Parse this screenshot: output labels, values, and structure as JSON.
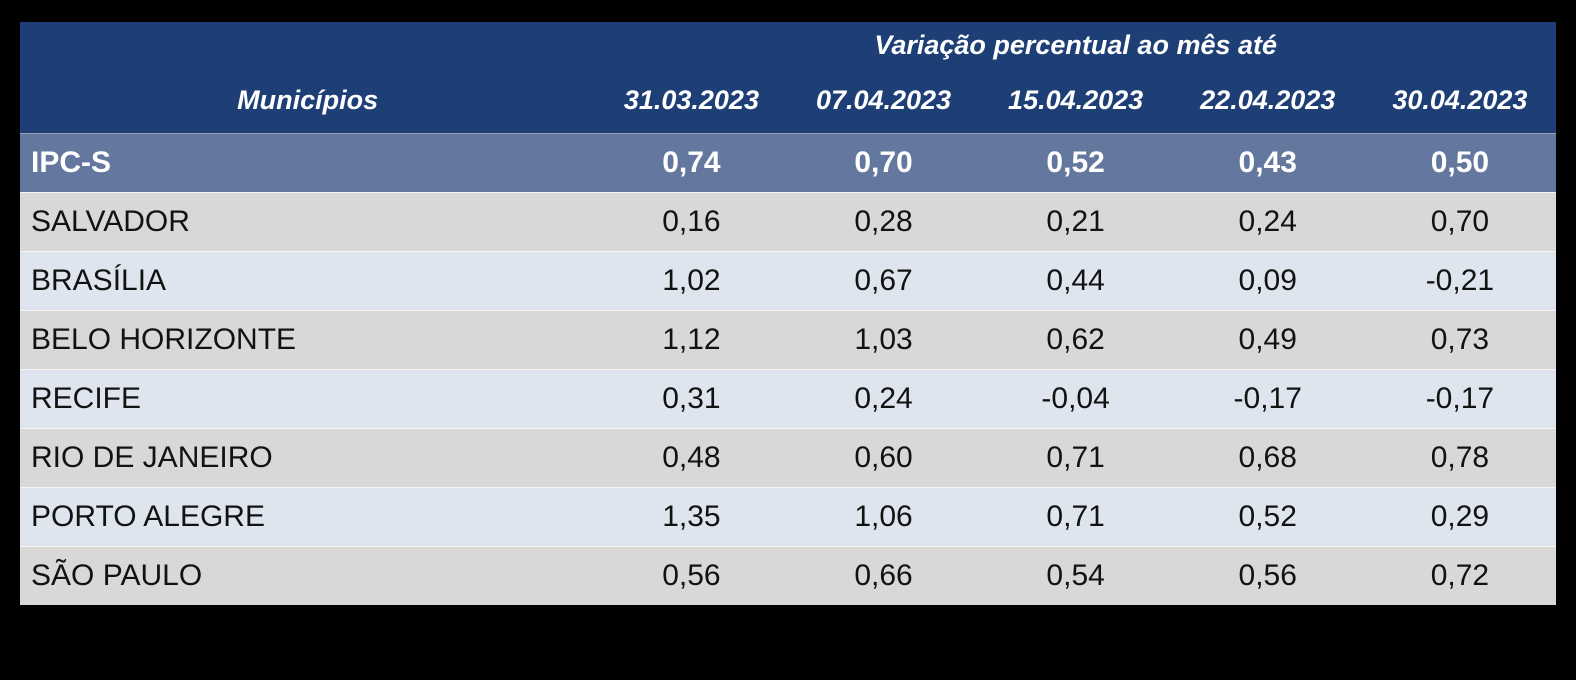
{
  "chart_data": {
    "type": "table",
    "title": "Variação percentual ao mês até",
    "row_header_label": "Municípios",
    "columns": [
      "31.03.2023",
      "07.04.2023",
      "15.04.2023",
      "22.04.2023",
      "30.04.2023"
    ],
    "summary_row": {
      "label": "IPC-S",
      "values": [
        "0,74",
        "0,70",
        "0,52",
        "0,43",
        "0,50"
      ]
    },
    "rows": [
      {
        "label": "SALVADOR",
        "values": [
          "0,16",
          "0,28",
          "0,21",
          "0,24",
          "0,70"
        ]
      },
      {
        "label": "BRASÍLIA",
        "values": [
          "1,02",
          "0,67",
          "0,44",
          "0,09",
          "-0,21"
        ]
      },
      {
        "label": "BELO HORIZONTE",
        "values": [
          "1,12",
          "1,03",
          "0,62",
          "0,49",
          "0,73"
        ]
      },
      {
        "label": "RECIFE",
        "values": [
          "0,31",
          "0,24",
          "-0,04",
          "-0,17",
          "-0,17"
        ]
      },
      {
        "label": "RIO DE JANEIRO",
        "values": [
          "0,48",
          "0,60",
          "0,71",
          "0,68",
          "0,78"
        ]
      },
      {
        "label": "PORTO ALEGRE",
        "values": [
          "1,35",
          "1,06",
          "0,71",
          "0,52",
          "0,29"
        ]
      },
      {
        "label": "SÃO PAULO",
        "values": [
          "0,56",
          "0,66",
          "0,54",
          "0,56",
          "0,72"
        ]
      }
    ],
    "layout": {
      "decimal_separator": ",",
      "striping": [
        "gray",
        "blue",
        "gray",
        "blue",
        "gray",
        "blue",
        "gray"
      ]
    }
  },
  "colors": {
    "canvas_background": "#000000",
    "header_background": "#1E3F76",
    "header_text": "#FFFFFF",
    "summary_row_background": "#64789F",
    "summary_row_text": "#FFFFFF",
    "row_gray_background": "#D8D8D6",
    "row_blue_background": "#DEE5EE",
    "body_text": "#121212",
    "row_separator": "#F5F5F5"
  }
}
